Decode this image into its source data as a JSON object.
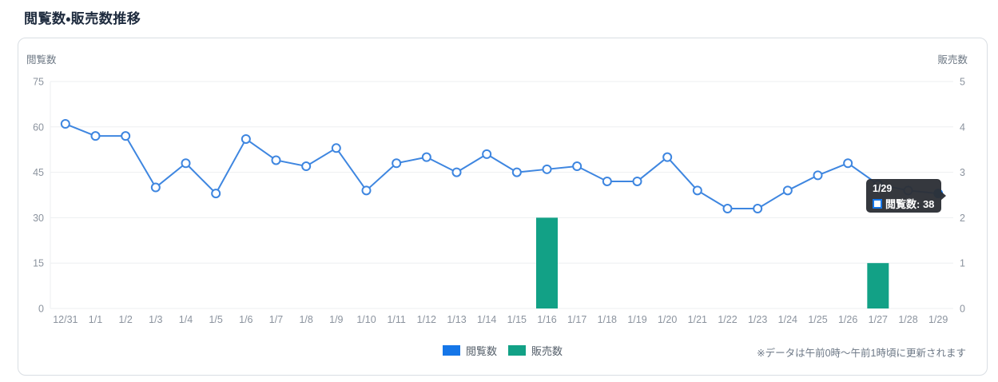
{
  "page": {
    "title": "閲覧数・販売数推移"
  },
  "legend": {
    "items": [
      {
        "label": "閲覧数",
        "color": "#1576e8"
      },
      {
        "label": "販売数",
        "color": "#12a186"
      }
    ]
  },
  "tooltip": {
    "date": "1/29",
    "text": "閲覧数: 38",
    "marker_color": "#1576e8"
  },
  "note": "※データは午前0時～午前1時頃に更新されます",
  "chart_data": {
    "type": "line",
    "title": "閲覧数・販売数推移",
    "categories": [
      "12/31",
      "1/1",
      "1/2",
      "1/3",
      "1/4",
      "1/5",
      "1/6",
      "1/7",
      "1/8",
      "1/9",
      "1/10",
      "1/11",
      "1/12",
      "1/13",
      "1/14",
      "1/15",
      "1/16",
      "1/17",
      "1/18",
      "1/19",
      "1/20",
      "1/21",
      "1/22",
      "1/23",
      "1/24",
      "1/25",
      "1/26",
      "1/27",
      "1/28",
      "1/29"
    ],
    "series": [
      {
        "name": "閲覧数",
        "type": "line",
        "axis": "left",
        "color": "#1576e8",
        "line_color": "#3e86e0",
        "values": [
          61,
          57,
          57,
          40,
          48,
          38,
          56,
          49,
          47,
          53,
          39,
          48,
          50,
          45,
          51,
          45,
          46,
          47,
          42,
          42,
          50,
          39,
          33,
          33,
          39,
          44,
          48,
          41,
          39,
          38
        ]
      },
      {
        "name": "販売数",
        "type": "bar",
        "axis": "right",
        "color": "#12a186",
        "values": [
          0,
          0,
          0,
          0,
          0,
          0,
          0,
          0,
          0,
          0,
          0,
          0,
          0,
          0,
          0,
          0,
          2,
          0,
          0,
          0,
          0,
          0,
          0,
          0,
          0,
          0,
          0,
          1,
          0,
          0
        ]
      }
    ],
    "left_axis": {
      "title": "閲覧数",
      "range": [
        0,
        75
      ],
      "ticks": [
        0,
        15,
        30,
        45,
        60,
        75
      ]
    },
    "right_axis": {
      "title": "販売数",
      "range": [
        0,
        5
      ],
      "ticks": [
        0,
        1,
        2,
        3,
        4,
        5
      ]
    },
    "grid": "horizontal",
    "legend_position": "bottom",
    "highlighted_point": {
      "category": "1/29",
      "series": "閲覧数",
      "value": 38
    }
  },
  "colors": {
    "grid": "#edeff1",
    "tick_text": "#8b939e",
    "axis_title_text": "#6f7a86",
    "tooltip_bg": "#2d3036"
  }
}
